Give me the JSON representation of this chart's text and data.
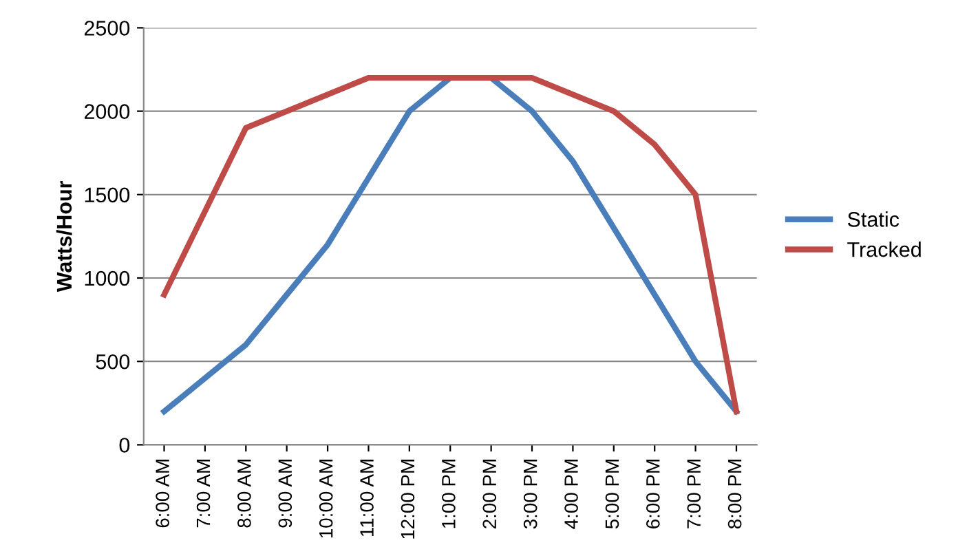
{
  "chart_data": {
    "type": "line",
    "ylabel": "Watts/Hour",
    "categories": [
      "6:00 AM",
      "7:00 AM",
      "8:00 AM",
      "9:00 AM",
      "10:00 AM",
      "11:00 AM",
      "12:00 PM",
      "1:00 PM",
      "2:00 PM",
      "3:00 PM",
      "4:00 PM",
      "5:00 PM",
      "6:00 PM",
      "7:00 PM",
      "8:00 PM"
    ],
    "series": [
      {
        "name": "Static",
        "color": "#4a7ebb",
        "values": [
          200,
          400,
          600,
          900,
          1200,
          1600,
          2000,
          2200,
          2200,
          2000,
          1700,
          1300,
          900,
          500,
          200
        ]
      },
      {
        "name": "Tracked",
        "color": "#be4b48",
        "values": [
          900,
          1400,
          1900,
          2000,
          2100,
          2200,
          2200,
          2200,
          2200,
          2200,
          2100,
          2000,
          1800,
          1500,
          200
        ]
      }
    ],
    "ylim": [
      0,
      2500
    ],
    "yticks": [
      0,
      500,
      1000,
      1500,
      2000,
      2500
    ],
    "grid": "y",
    "legend": "right",
    "marker": "none",
    "line_style": "solid"
  }
}
